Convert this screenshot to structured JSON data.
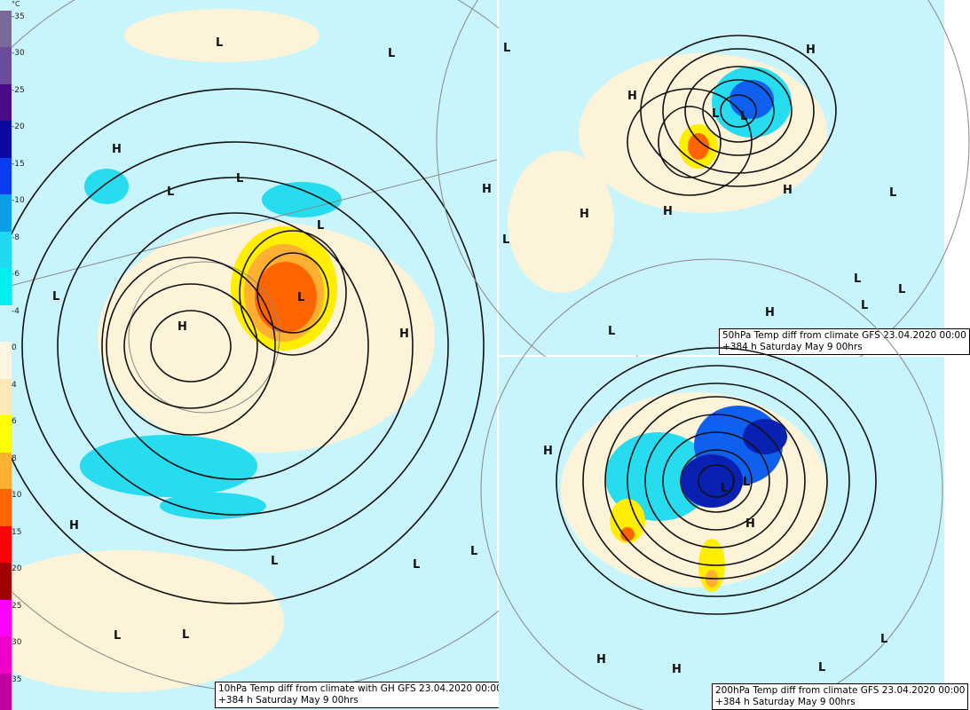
{
  "legend": {
    "unit": "°C",
    "labels": [
      "-35",
      "-30",
      "-25",
      "-20",
      "-15",
      "-10",
      "-8",
      "-6",
      "-4",
      "0",
      "4",
      "6",
      "8",
      "10",
      "15",
      "20",
      "25",
      "30",
      "35"
    ],
    "colors": [
      "#7a6a9a",
      "#6a4c9c",
      "#4b0a8a",
      "#0a0aa0",
      "#0a3cf0",
      "#0a9ee8",
      "#20d8f0",
      "#00f0f0",
      "#c8f4fb",
      "#fdf6e0",
      "#fde9b8",
      "#ffff00",
      "#ffb030",
      "#ff6400",
      "#ff0000",
      "#a00000",
      "#ff00ff",
      "#f000c8",
      "#c000a0"
    ]
  },
  "panels": {
    "main": {
      "caption_line1": "10hPa Temp diff from climate with GH GFS 23.04.2020 00:00",
      "caption_line2": "+384 h Saturday May 9 00hrs",
      "centers": [
        "L",
        "L",
        "H",
        "L",
        "L",
        "L",
        "H",
        "L",
        "H",
        "H",
        "L",
        "H",
        "L",
        "L",
        "L",
        "L",
        "L"
      ]
    },
    "hpa50": {
      "caption_line1": "50hPa Temp diff from climate GFS 23.04.2020 00:00",
      "caption_line2": "+384 h Saturday May 9 00hrs",
      "centers": [
        "L",
        "H",
        "H",
        "L",
        "L",
        "H",
        "H",
        "L",
        "H",
        "L",
        "L",
        "L",
        "H",
        "L",
        "L"
      ]
    },
    "hpa200": {
      "caption_line1": "200hPa Temp diff from climate GFS 23.04.2020 00:00",
      "caption_line2": "+384 h Saturday May 9 00hrs",
      "centers": [
        "H",
        "L",
        "L",
        "H",
        "H",
        "L",
        "H",
        "L"
      ]
    }
  }
}
